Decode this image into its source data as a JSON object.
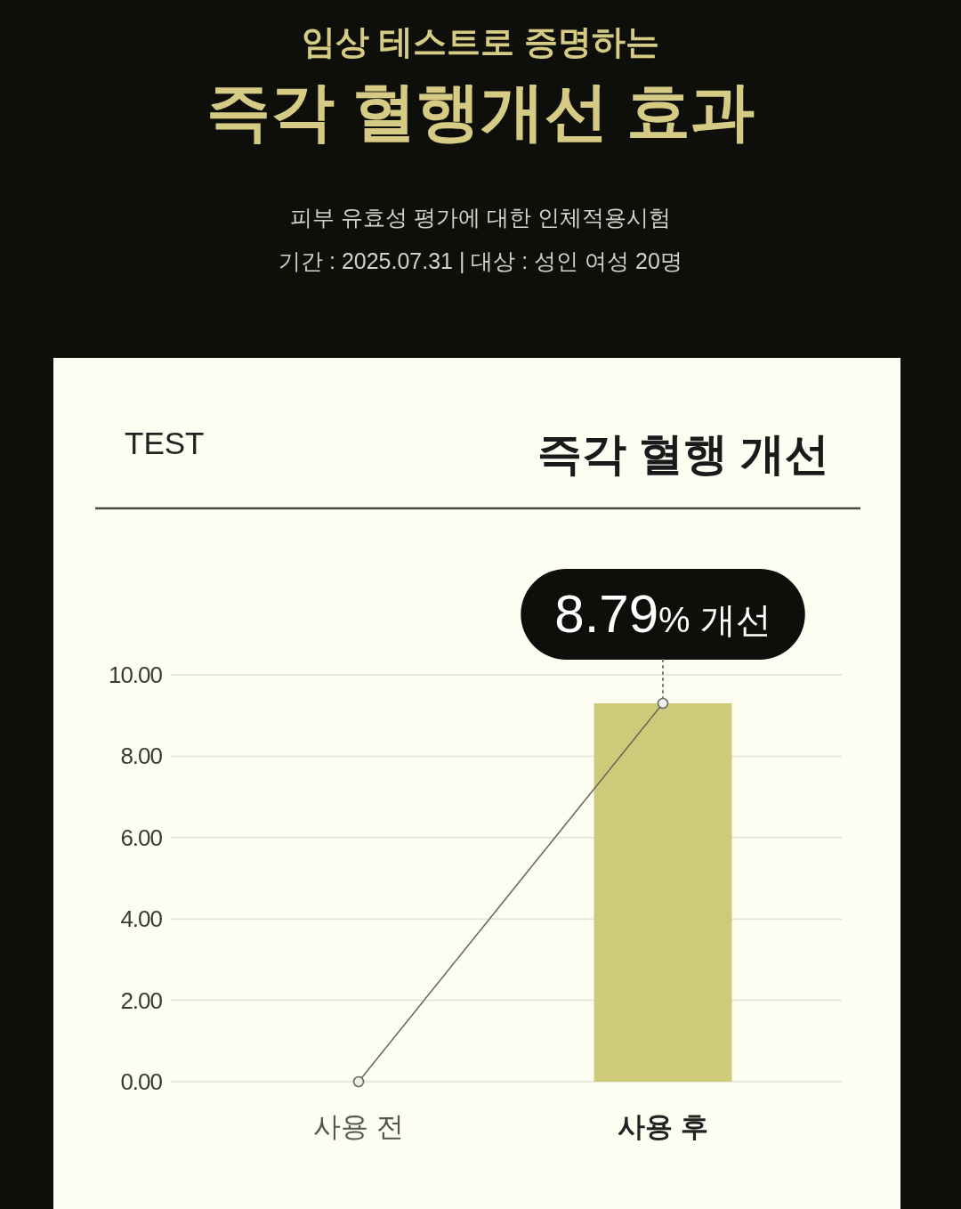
{
  "chart_data": {
    "type": "bar",
    "title": "즉각 혈행개선 효과",
    "subtitle": "임상 테스트로 증명하는",
    "categories": [
      "사용 전",
      "사용 후"
    ],
    "series": [
      {
        "color": "#cfca7a",
        "values": [
          null,
          9.3
        ]
      },
      {
        "type": "line",
        "color": "#6e6b5a",
        "values": [
          0,
          9.3
        ]
      }
    ],
    "marker": "circle",
    "ylim": [
      0,
      10
    ],
    "yticks": [
      {
        "value": 0,
        "label": "0.00"
      },
      {
        "value": 2,
        "label": "2.00"
      },
      {
        "value": 4,
        "label": "4.00"
      },
      {
        "value": 6,
        "label": "6.00"
      },
      {
        "value": 8,
        "label": "8.00"
      },
      {
        "value": 10,
        "label": "10.00"
      }
    ],
    "grid": "y",
    "annotations": [
      "피부 유효성 평가에 대한 인체적용시험",
      "기간 : 2025.07.31 | 대상 : 성인 여성 20명",
      "TEST",
      "즉각 혈행 개선",
      {
        "text": "8.79% 개선",
        "x": "사용 후",
        "y": 9.3
      }
    ]
  }
}
